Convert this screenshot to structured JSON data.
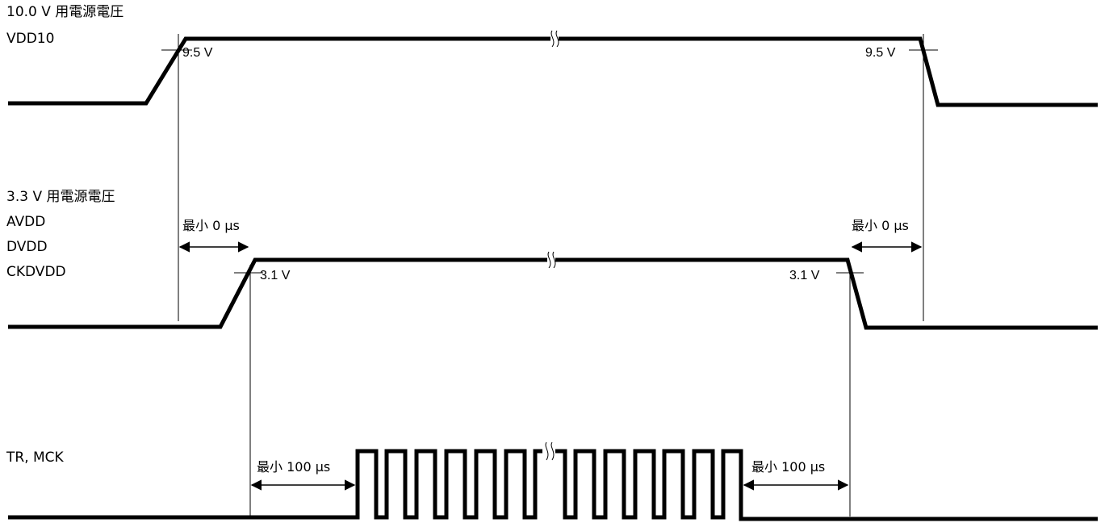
{
  "signals": {
    "vdd10": {
      "label_line1": "10.0 V 用電源電圧",
      "label_line2": "VDD10",
      "threshold_rise": "9.5 V",
      "threshold_fall": "9.5 V"
    },
    "vdd33": {
      "label_line1": "3.3 V 用電源電圧",
      "label_line2": "AVDD",
      "label_line3": "DVDD",
      "label_line4": "CKDVDD",
      "threshold_rise": "3.1 V",
      "threshold_fall": "3.1 V"
    },
    "tr_mck": {
      "label": "TR, MCK"
    }
  },
  "timing": {
    "rise_delay": "最小 0 μs",
    "fall_delay": "最小 0 μs",
    "clock_start_delay": "最小 100 μs",
    "clock_stop_delay": "最小 100 μs"
  }
}
